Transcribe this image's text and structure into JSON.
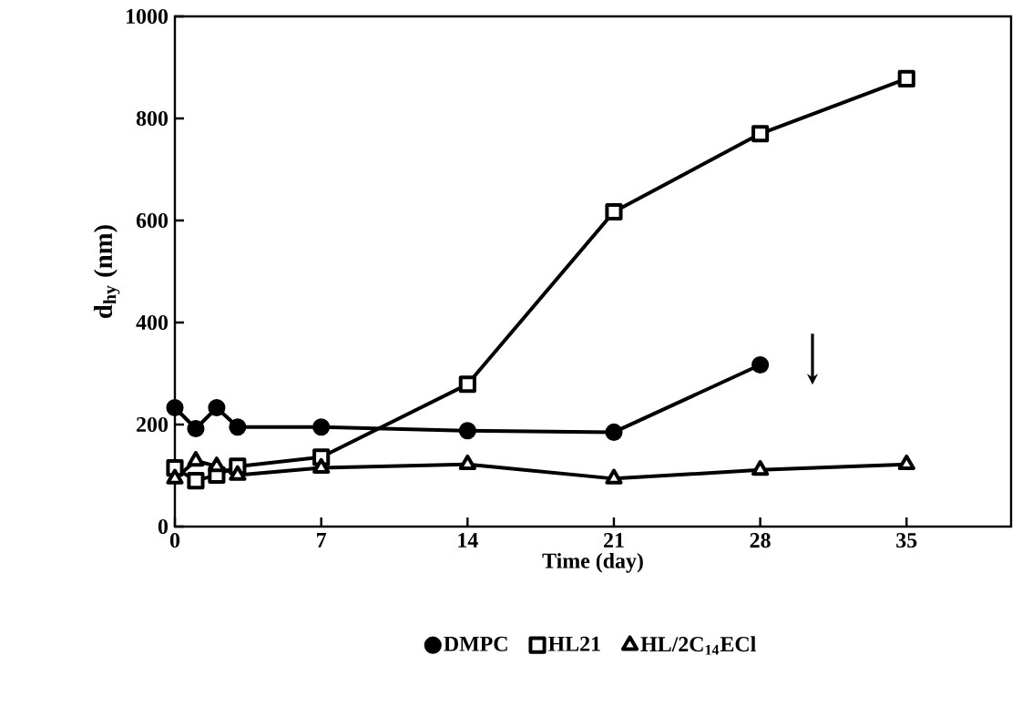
{
  "chart_data": {
    "type": "line",
    "xlabel": "Time (day)",
    "ylabel": "d$_{hy}$ (nm)",
    "x": [
      0,
      1,
      2,
      3,
      7,
      14,
      21,
      28,
      35
    ],
    "series": [
      {
        "name": "DMPC",
        "color": "#000000",
        "marker": "circle",
        "values": [
          233,
          192,
          233,
          195,
          195,
          188,
          185,
          317,
          null
        ]
      },
      {
        "name": "HL21",
        "color": "#000000",
        "marker": "square",
        "values": [
          115,
          90,
          101,
          118,
          136,
          279,
          617,
          770,
          878
        ]
      },
      {
        "name": "HL/2C$_{14}$ECl",
        "color": "#000000",
        "marker": "triangle",
        "values": [
          94,
          129,
          118,
          101,
          115,
          122,
          94,
          111,
          122
        ]
      }
    ],
    "xlim": [
      0,
      40
    ],
    "ylim": [
      0,
      1000
    ],
    "xticks": [
      0,
      7,
      14,
      21,
      28,
      35
    ],
    "yticks": [
      0,
      200,
      400,
      600,
      800,
      1000
    ],
    "grid": false,
    "legend": "bottom",
    "line_style": "solid"
  }
}
